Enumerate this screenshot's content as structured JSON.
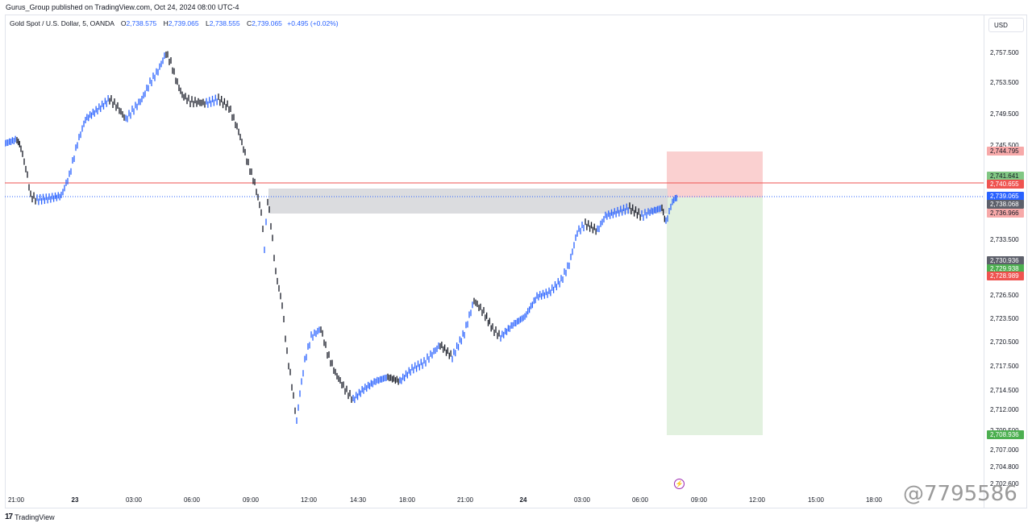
{
  "header": {
    "published": "Gurus_Group published on TradingView.com, Oct 24, 2024 08:00 UTC-4"
  },
  "legend": {
    "symbol": "Gold Spot / U.S. Dollar, 5, OANDA",
    "open_label": "O",
    "open": "2,738.575",
    "high_label": "H",
    "high": "2,739.065",
    "low_label": "L",
    "low": "2,738.555",
    "close_label": "C",
    "close": "2,739.065",
    "change": "+0.495 (+0.02%)"
  },
  "currency": "USD",
  "price_axis": [
    "2,757.500",
    "2,753.500",
    "2,749.500",
    "2,745.500",
    "2,733.500",
    "2,726.500",
    "2,723.500",
    "2,720.500",
    "2,717.500",
    "2,714.500",
    "2,712.000",
    "2,709.500",
    "2,707.000",
    "2,704.800",
    "2,702.600"
  ],
  "time_axis": [
    {
      "label": "21:00",
      "bold": false
    },
    {
      "label": "23",
      "bold": true
    },
    {
      "label": "03:00",
      "bold": false
    },
    {
      "label": "06:00",
      "bold": false
    },
    {
      "label": "09:00",
      "bold": false
    },
    {
      "label": "12:00",
      "bold": false
    },
    {
      "label": "14:30",
      "bold": false
    },
    {
      "label": "18:00",
      "bold": false
    },
    {
      "label": "21:00",
      "bold": false
    },
    {
      "label": "24",
      "bold": true
    },
    {
      "label": "03:00",
      "bold": false
    },
    {
      "label": "06:00",
      "bold": false
    },
    {
      "label": "09:00",
      "bold": false
    },
    {
      "label": "12:00",
      "bold": false
    },
    {
      "label": "15:00",
      "bold": false
    },
    {
      "label": "18:00",
      "bold": false
    }
  ],
  "price_tags": {
    "stop": "2,744.795",
    "target_top": "2,741.641",
    "red_line": "2,740.655",
    "last_price": "2,739.065",
    "zone_top": "2,738.068",
    "zone_bottom": "2,736.966",
    "gray_level": "2,730.936",
    "green_small": "2,729.938",
    "red_small": "2,728.989",
    "target": "2,708.936"
  },
  "colors": {
    "up": "#2962ff",
    "down": "#131722",
    "stop_zone": "#f9c8c8",
    "target_zone": "#dff0dc",
    "supply_zone": "#d7d8dc",
    "red_line": "#ef5350",
    "last_line": "#2962ff"
  },
  "branding": {
    "logo": "TradingView",
    "watermark": "@7795586"
  }
}
